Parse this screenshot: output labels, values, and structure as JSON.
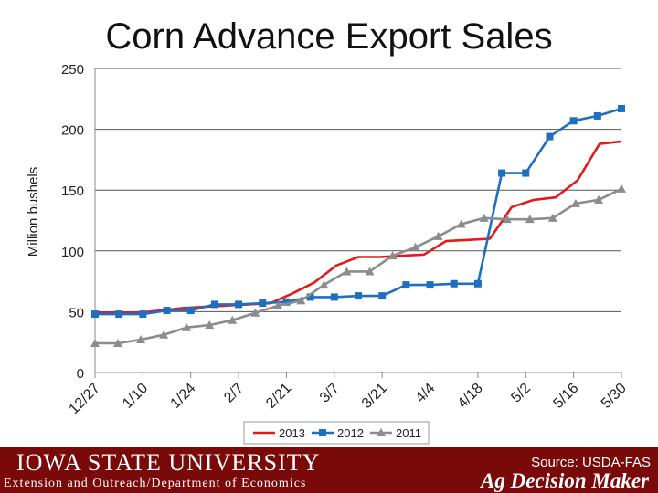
{
  "chart_data": {
    "type": "line",
    "title": "Corn Advance Export Sales",
    "ylabel": "Million bushels",
    "ylim": [
      0,
      250
    ],
    "yticks": [
      0,
      50,
      100,
      150,
      200,
      250
    ],
    "xtick_labels": [
      "12/27",
      "1/10",
      "1/24",
      "2/7",
      "2/21",
      "3/7",
      "3/21",
      "4/4",
      "4/18",
      "5/2",
      "5/16",
      "5/30"
    ],
    "grid": "horizontal",
    "legend": "bottom",
    "series": [
      {
        "name": "2013",
        "color": "#e31a1c",
        "marker": "none",
        "values": [
          49,
          49,
          49,
          51,
          53,
          54,
          55,
          56,
          57,
          65,
          74,
          88,
          95,
          95,
          96,
          97,
          108,
          109,
          110,
          136,
          142,
          144,
          158,
          188,
          190
        ]
      },
      {
        "name": "2012",
        "color": "#1f6fc0",
        "marker": "square",
        "values": [
          48,
          48,
          48,
          51,
          51,
          56,
          56,
          57,
          58,
          62,
          62,
          63,
          63,
          72,
          72,
          73,
          73,
          164,
          164,
          194,
          207,
          211,
          217
        ]
      },
      {
        "name": "2011",
        "color": "#8c8c8c",
        "marker": "triangle",
        "values": [
          24,
          24,
          27,
          31,
          37,
          39,
          43,
          49,
          55,
          59,
          72,
          83,
          83,
          96,
          103,
          112,
          122,
          127,
          126,
          126,
          127,
          139,
          142,
          151
        ]
      }
    ]
  },
  "footer": {
    "university": "IOWA STATE UNIVERSITY",
    "department": "Extension and Outreach/Department of Economics",
    "source": "Source: USDA-FAS",
    "brand": "Ag Decision Maker"
  }
}
